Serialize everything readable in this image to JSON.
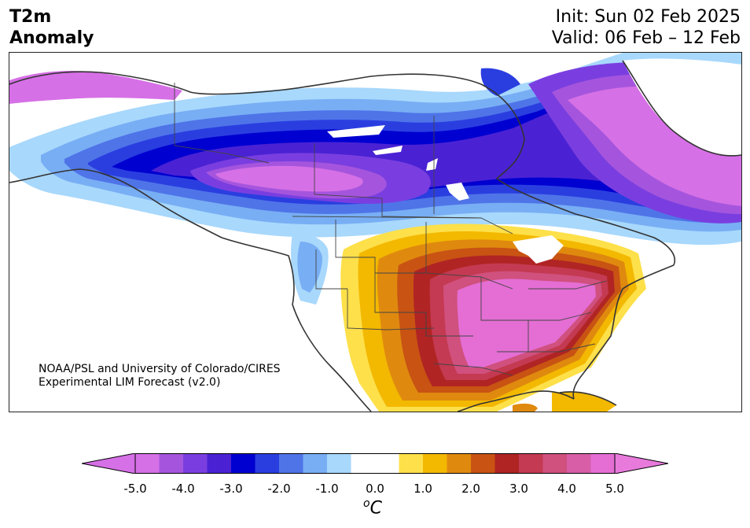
{
  "header": {
    "title_line1": "T2m",
    "title_line2": "Anomaly",
    "init": "Init: Sun 02 Feb 2025",
    "valid": "Valid: 06 Feb – 12 Feb"
  },
  "credit": {
    "line1": "NOAA/PSL and University of Colorado/CIRES",
    "line2": "Experimental LIM Forecast (v2.0)"
  },
  "colorbar": {
    "ticks": [
      "-5.0",
      "-4.0",
      "-3.0",
      "-2.0",
      "-1.0",
      "0.0",
      "1.0",
      "2.0",
      "3.0",
      "4.0",
      "5.0"
    ],
    "units_base": "C",
    "units_sup": "o",
    "min": -5.0,
    "max": 5.0,
    "step": 0.5,
    "colors": [
      "#d670e6",
      "#a555dd",
      "#7a3ee0",
      "#4a22d4",
      "#0000d0",
      "#2a3ee0",
      "#4f74e8",
      "#78aef4",
      "#a8d8fc",
      "#ffffff",
      "#ffffff",
      "#fde04a",
      "#f3b800",
      "#df8a0f",
      "#c85313",
      "#b02424",
      "#c43a52",
      "#d0507e",
      "#d85ea8",
      "#e46ed4"
    ],
    "under_color": "#d670e6",
    "over_color": "#e87adc"
  },
  "map": {
    "region": "North America",
    "warm_anomaly_region": "Southern and Eastern United States",
    "cold_anomaly_region": "Canada and northern Great Plains"
  }
}
